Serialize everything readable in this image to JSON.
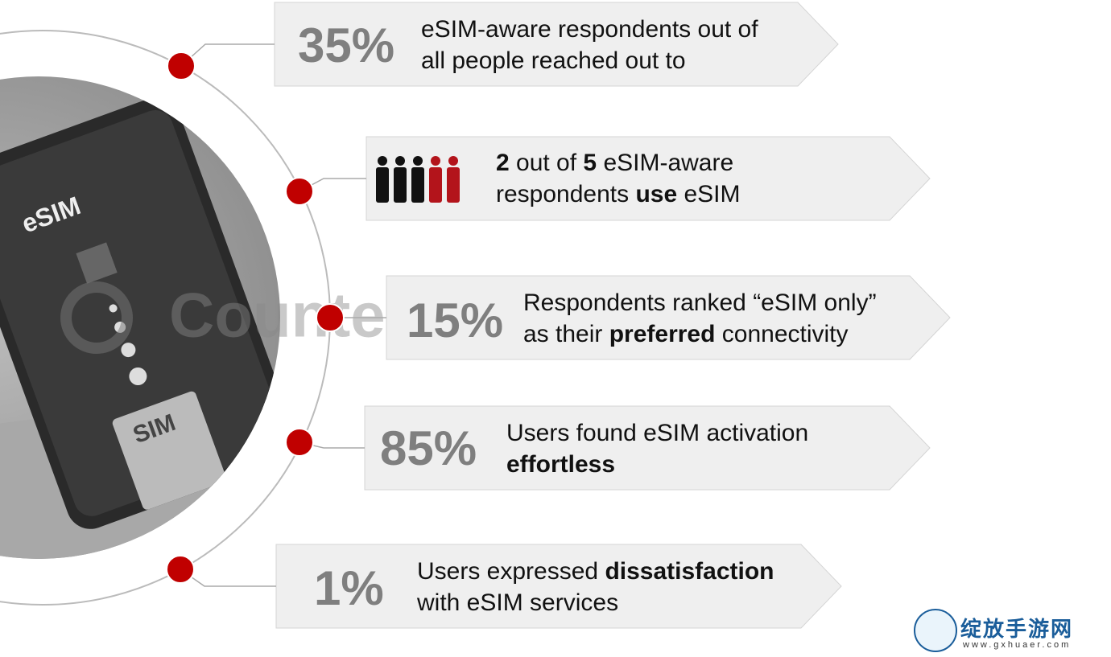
{
  "watermark": "Counterpoint",
  "photo": {
    "esim_label": "eSIM",
    "sim_label": "SIM"
  },
  "items": [
    {
      "stat": "35%",
      "lines": [
        [
          {
            "text": "eSIM-aware respondents out of",
            "bold": false
          }
        ],
        [
          {
            "text": "all people reached out to",
            "bold": false
          }
        ]
      ]
    },
    {
      "lines": [
        [
          {
            "text": "2",
            "bold": true
          },
          {
            "text": " out of ",
            "bold": false
          },
          {
            "text": "5",
            "bold": true
          },
          {
            "text": " eSIM-aware",
            "bold": false
          }
        ],
        [
          {
            "text": "respondents ",
            "bold": false
          },
          {
            "text": "use",
            "bold": true
          },
          {
            "text": " eSIM",
            "bold": false
          }
        ]
      ]
    },
    {
      "stat": "15%",
      "lines": [
        [
          {
            "text": "Respondents ranked “eSIM only”",
            "bold": false
          }
        ],
        [
          {
            "text": "as their ",
            "bold": false
          },
          {
            "text": "preferred",
            "bold": true
          },
          {
            "text": " connectivity",
            "bold": false
          }
        ]
      ]
    },
    {
      "stat": "85%",
      "lines": [
        [
          {
            "text": "Users found eSIM activation",
            "bold": false
          }
        ],
        [
          {
            "text": "effortless",
            "bold": true
          }
        ]
      ]
    },
    {
      "stat": "1%",
      "lines": [
        [
          {
            "text": "Users expressed ",
            "bold": false
          },
          {
            "text": "dissatisfaction",
            "bold": true
          }
        ],
        [
          {
            "text": "with eSIM services",
            "bold": false
          }
        ]
      ]
    }
  ],
  "logo": {
    "name": "绽放手游网",
    "url": "www.gxhuaer.com"
  }
}
